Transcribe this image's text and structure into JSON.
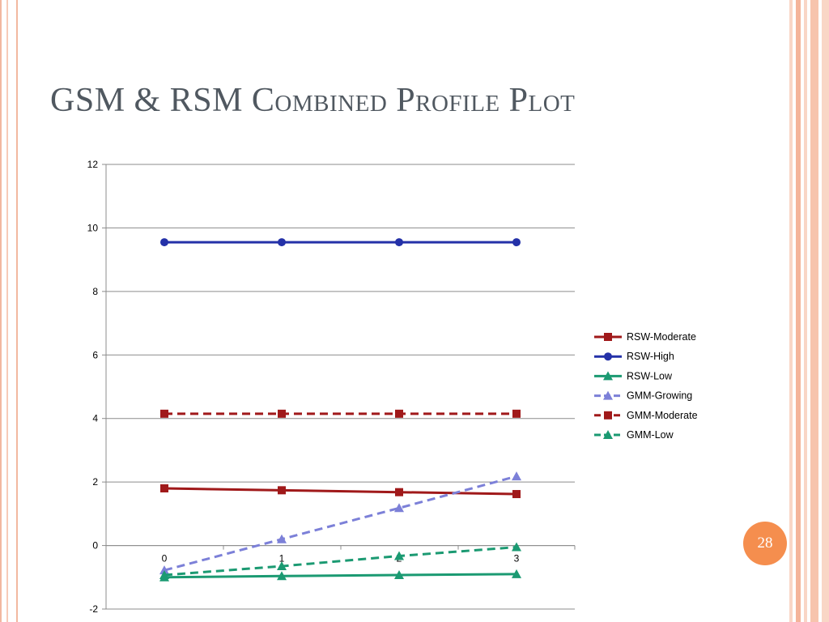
{
  "slide": {
    "title": "GSM & RSM Combined Profile Plot",
    "page_number": "28",
    "accent_color": "#f58e4e"
  },
  "chart_data": {
    "type": "line",
    "title": "",
    "xlabel": "",
    "ylabel": "",
    "x": [
      0,
      1,
      2,
      3
    ],
    "ylim": [
      -2,
      12
    ],
    "yticks": [
      -2,
      0,
      2,
      4,
      6,
      8,
      10,
      12
    ],
    "xticks": [
      0,
      1,
      2,
      3
    ],
    "grid": true,
    "legend_position": "right",
    "series": [
      {
        "name": "RSW-Moderate",
        "values": [
          1.8,
          1.74,
          1.68,
          1.62
        ],
        "color": "#a0191a",
        "marker": "square",
        "dash": false
      },
      {
        "name": "RSW-High",
        "values": [
          9.55,
          9.55,
          9.55,
          9.55
        ],
        "color": "#2431a8",
        "marker": "circle",
        "dash": false
      },
      {
        "name": "RSW-Low",
        "values": [
          -1.0,
          -0.96,
          -0.93,
          -0.9
        ],
        "color": "#1b9a72",
        "marker": "triangle",
        "dash": false
      },
      {
        "name": "GMM-Growing",
        "values": [
          -0.78,
          0.2,
          1.18,
          2.18
        ],
        "color": "#7c80d8",
        "marker": "triangle",
        "dash": true
      },
      {
        "name": "GMM-Moderate",
        "values": [
          4.15,
          4.15,
          4.15,
          4.15
        ],
        "color": "#a0191a",
        "marker": "square",
        "dash": true
      },
      {
        "name": "GMM-Low",
        "values": [
          -0.93,
          -0.65,
          -0.33,
          -0.05
        ],
        "color": "#1b9a72",
        "marker": "triangle",
        "dash": true
      }
    ]
  }
}
